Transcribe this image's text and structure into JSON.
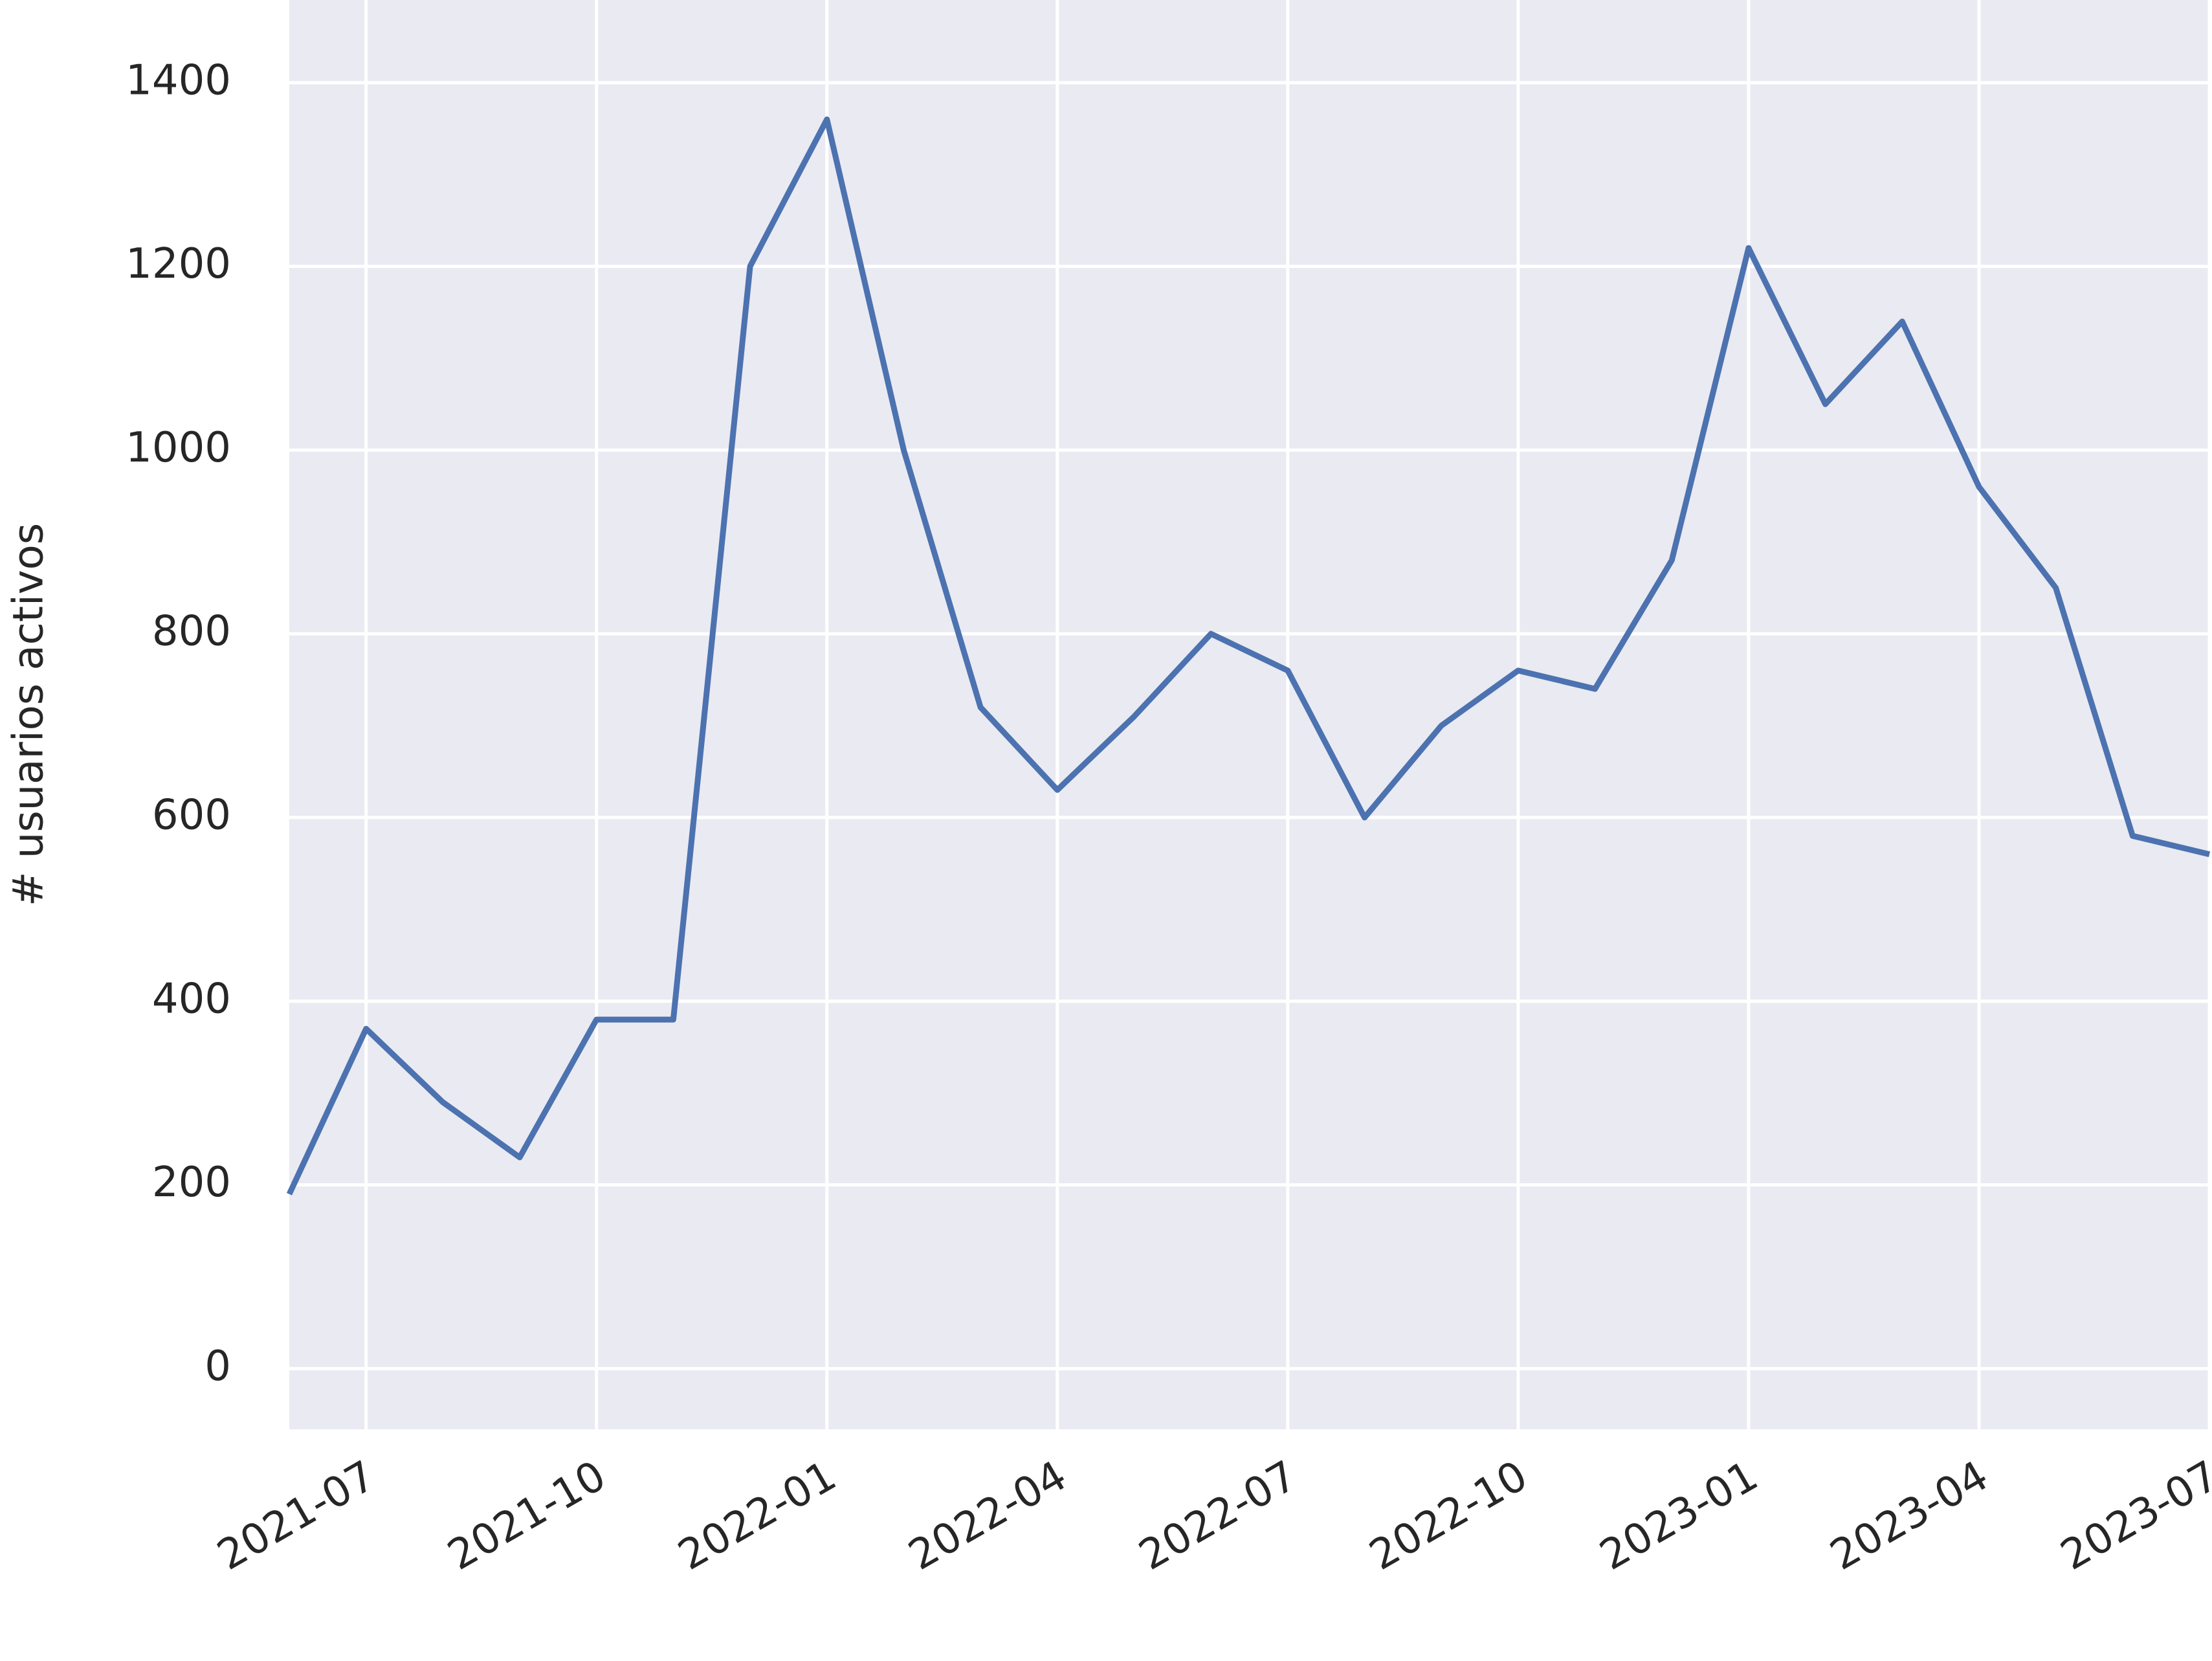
{
  "chart_data": {
    "type": "line",
    "x": [
      "2021-06",
      "2021-07",
      "2021-08",
      "2021-09",
      "2021-10",
      "2021-11",
      "2021-12",
      "2022-01",
      "2022-02",
      "2022-03",
      "2022-04",
      "2022-05",
      "2022-06",
      "2022-07",
      "2022-08",
      "2022-09",
      "2022-10",
      "2022-11",
      "2022-12",
      "2023-01",
      "2023-02",
      "2023-03",
      "2023-04",
      "2023-05",
      "2023-06",
      "2023-07"
    ],
    "series": [
      {
        "name": "usuarios activos",
        "color": "#4c72b0",
        "values": [
          190,
          370,
          290,
          230,
          380,
          380,
          1200,
          1360,
          1000,
          720,
          630,
          710,
          800,
          760,
          600,
          700,
          760,
          740,
          880,
          1220,
          1050,
          1140,
          960,
          850,
          580,
          560
        ]
      }
    ],
    "ylabel": "# usuarios activos",
    "xlim": [
      "2021-06",
      "2023-07"
    ],
    "xticks": [
      "2021-07",
      "2021-10",
      "2022-01",
      "2022-04",
      "2022-07",
      "2022-10",
      "2023-01",
      "2023-04",
      "2023-07"
    ],
    "ylim": [
      -66,
      1490
    ],
    "yticks": [
      0,
      200,
      400,
      600,
      800,
      1000,
      1200,
      1400
    ],
    "grid": true
  }
}
